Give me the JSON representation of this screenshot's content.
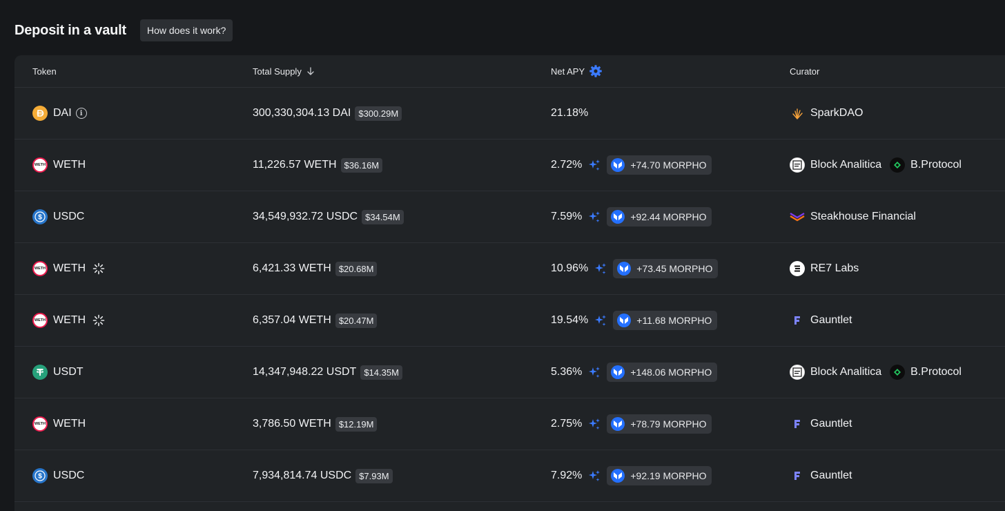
{
  "header": {
    "title": "Deposit in a vault",
    "how_button_label": "How does it work?"
  },
  "table": {
    "columns": {
      "token": "Token",
      "supply": "Total Supply",
      "apy": "Net APY",
      "curator": "Curator"
    },
    "rows": [
      {
        "token": "DAI",
        "token_icon": "dai-icon",
        "info": true,
        "sparkle": false,
        "supply": "300,330,304.13 DAI",
        "usd": "$300.29M",
        "apy": "21.18%",
        "reward": "",
        "curators": [
          {
            "name": "SparkDAO",
            "icon": "sparkdao-icon"
          }
        ]
      },
      {
        "token": "WETH",
        "token_icon": "weth-icon",
        "info": false,
        "sparkle": false,
        "supply": "11,226.57 WETH",
        "usd": "$36.16M",
        "apy": "2.72%",
        "reward": "+74.70 MORPHO",
        "curators": [
          {
            "name": "Block Analitica",
            "icon": "block-analitica-icon"
          },
          {
            "name": "B.Protocol",
            "icon": "bprotocol-icon"
          }
        ]
      },
      {
        "token": "USDC",
        "token_icon": "usdc-icon",
        "info": false,
        "sparkle": false,
        "supply": "34,549,932.72 USDC",
        "usd": "$34.54M",
        "apy": "7.59%",
        "reward": "+92.44 MORPHO",
        "curators": [
          {
            "name": "Steakhouse Financial",
            "icon": "steakhouse-icon"
          }
        ]
      },
      {
        "token": "WETH",
        "token_icon": "weth-icon",
        "info": false,
        "sparkle": true,
        "supply": "6,421.33 WETH",
        "usd": "$20.68M",
        "apy": "10.96%",
        "reward": "+73.45 MORPHO",
        "curators": [
          {
            "name": "RE7 Labs",
            "icon": "re7-icon"
          }
        ]
      },
      {
        "token": "WETH",
        "token_icon": "weth-icon",
        "info": false,
        "sparkle": true,
        "supply": "6,357.04 WETH",
        "usd": "$20.47M",
        "apy": "19.54%",
        "reward": "+11.68 MORPHO",
        "curators": [
          {
            "name": "Gauntlet",
            "icon": "gauntlet-icon"
          }
        ]
      },
      {
        "token": "USDT",
        "token_icon": "usdt-icon",
        "info": false,
        "sparkle": false,
        "supply": "14,347,948.22 USDT",
        "usd": "$14.35M",
        "apy": "5.36%",
        "reward": "+148.06 MORPHO",
        "curators": [
          {
            "name": "Block Analitica",
            "icon": "block-analitica-icon"
          },
          {
            "name": "B.Protocol",
            "icon": "bprotocol-icon"
          }
        ]
      },
      {
        "token": "WETH",
        "token_icon": "weth-icon",
        "info": false,
        "sparkle": false,
        "supply": "3,786.50 WETH",
        "usd": "$12.19M",
        "apy": "2.75%",
        "reward": "+78.79 MORPHO",
        "curators": [
          {
            "name": "Gauntlet",
            "icon": "gauntlet-icon"
          }
        ]
      },
      {
        "token": "USDC",
        "token_icon": "usdc-icon",
        "info": false,
        "sparkle": false,
        "supply": "7,934,814.74 USDC",
        "usd": "$7.93M",
        "apy": "7.92%",
        "reward": "+92.19 MORPHO",
        "curators": [
          {
            "name": "Gauntlet",
            "icon": "gauntlet-icon"
          }
        ]
      }
    ]
  },
  "colors": {
    "background": "#16181b",
    "table_bg": "#202326",
    "accent_blue": "#2470ff"
  }
}
